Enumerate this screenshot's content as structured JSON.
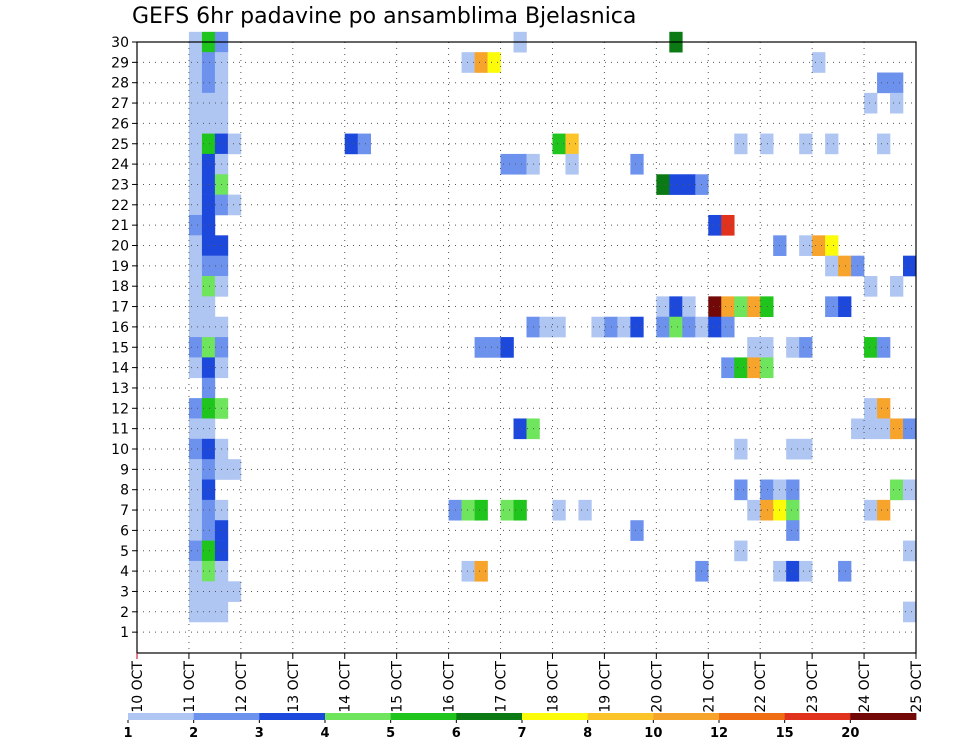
{
  "chart_data": {
    "type": "heatmap",
    "title": "GEFS 6hr padavine po ansamblima Bjelasnica",
    "xlabel": "",
    "ylabel": "",
    "x_ticks": [
      "10 OCT",
      "11 OCT",
      "12 OCT",
      "13 OCT",
      "14 OCT",
      "15 OCT",
      "16 OCT",
      "17 OCT",
      "18 OCT",
      "19 OCT",
      "20 OCT",
      "21 OCT",
      "22 OCT",
      "23 OCT",
      "24 OCT",
      "25 OCT"
    ],
    "y_ticks": [
      "1",
      "2",
      "3",
      "4",
      "5",
      "6",
      "7",
      "8",
      "9",
      "10",
      "11",
      "12",
      "13",
      "14",
      "15",
      "16",
      "17",
      "18",
      "19",
      "20",
      "21",
      "22",
      "23",
      "24",
      "25",
      "26",
      "27",
      "28",
      "29",
      "30"
    ],
    "x_range_days": [
      0,
      15
    ],
    "step_hours": 6,
    "grid": true,
    "legend_bins": [
      "1",
      "2",
      "3",
      "4",
      "5",
      "6",
      "7",
      "8",
      "10",
      "12",
      "15",
      "20"
    ],
    "legend_colors": [
      "#b0c6f2",
      "#6d92ed",
      "#1c48dc",
      "#6fe45d",
      "#1fc41c",
      "#0b7a14",
      "#fbfb0a",
      "#fbc52a",
      "#f7a42d",
      "#f06e13",
      "#e0321c",
      "#730808"
    ],
    "cell_value_units": "6hr precipitation (legend class lower bound)",
    "cells": [
      {
        "member": 30,
        "day": 1.0,
        "value": 1
      },
      {
        "member": 30,
        "day": 1.25,
        "value": 5
      },
      {
        "member": 30,
        "day": 1.5,
        "value": 2
      },
      {
        "member": 30,
        "day": 7.25,
        "value": 1
      },
      {
        "member": 30,
        "day": 10.25,
        "value": 6
      },
      {
        "member": 29,
        "day": 1.0,
        "value": 1
      },
      {
        "member": 29,
        "day": 1.25,
        "value": 2
      },
      {
        "member": 29,
        "day": 1.5,
        "value": 1
      },
      {
        "member": 29,
        "day": 6.25,
        "value": 1
      },
      {
        "member": 29,
        "day": 6.5,
        "value": 10
      },
      {
        "member": 29,
        "day": 6.75,
        "value": 7
      },
      {
        "member": 29,
        "day": 13.0,
        "value": 1
      },
      {
        "member": 28,
        "day": 1.0,
        "value": 1
      },
      {
        "member": 28,
        "day": 1.25,
        "value": 2
      },
      {
        "member": 28,
        "day": 1.5,
        "value": 1
      },
      {
        "member": 28,
        "day": 14.25,
        "value": 2
      },
      {
        "member": 28,
        "day": 14.5,
        "value": 2
      },
      {
        "member": 27,
        "day": 1.0,
        "value": 1
      },
      {
        "member": 27,
        "day": 1.25,
        "value": 1
      },
      {
        "member": 27,
        "day": 1.5,
        "value": 1
      },
      {
        "member": 27,
        "day": 14.0,
        "value": 1
      },
      {
        "member": 27,
        "day": 14.5,
        "value": 1
      },
      {
        "member": 26,
        "day": 1.0,
        "value": 1
      },
      {
        "member": 26,
        "day": 1.25,
        "value": 1
      },
      {
        "member": 26,
        "day": 1.5,
        "value": 1
      },
      {
        "member": 25,
        "day": 1.0,
        "value": 1
      },
      {
        "member": 25,
        "day": 1.25,
        "value": 5
      },
      {
        "member": 25,
        "day": 1.5,
        "value": 3
      },
      {
        "member": 25,
        "day": 1.75,
        "value": 1
      },
      {
        "member": 25,
        "day": 4.0,
        "value": 3
      },
      {
        "member": 25,
        "day": 4.25,
        "value": 2
      },
      {
        "member": 25,
        "day": 8.0,
        "value": 5
      },
      {
        "member": 25,
        "day": 8.25,
        "value": 8
      },
      {
        "member": 25,
        "day": 11.5,
        "value": 1
      },
      {
        "member": 25,
        "day": 12.0,
        "value": 1
      },
      {
        "member": 25,
        "day": 12.75,
        "value": 1
      },
      {
        "member": 25,
        "day": 13.25,
        "value": 1
      },
      {
        "member": 25,
        "day": 14.25,
        "value": 1
      },
      {
        "member": 24,
        "day": 1.0,
        "value": 1
      },
      {
        "member": 24,
        "day": 1.25,
        "value": 3
      },
      {
        "member": 24,
        "day": 1.5,
        "value": 1
      },
      {
        "member": 24,
        "day": 7.0,
        "value": 2
      },
      {
        "member": 24,
        "day": 7.25,
        "value": 2
      },
      {
        "member": 24,
        "day": 7.5,
        "value": 1
      },
      {
        "member": 24,
        "day": 8.25,
        "value": 1
      },
      {
        "member": 24,
        "day": 9.5,
        "value": 2
      },
      {
        "member": 23,
        "day": 1.0,
        "value": 1
      },
      {
        "member": 23,
        "day": 1.25,
        "value": 3
      },
      {
        "member": 23,
        "day": 1.5,
        "value": 4
      },
      {
        "member": 23,
        "day": 10.0,
        "value": 6
      },
      {
        "member": 23,
        "day": 10.25,
        "value": 3
      },
      {
        "member": 23,
        "day": 10.5,
        "value": 3
      },
      {
        "member": 23,
        "day": 10.75,
        "value": 2
      },
      {
        "member": 22,
        "day": 1.0,
        "value": 1
      },
      {
        "member": 22,
        "day": 1.25,
        "value": 3
      },
      {
        "member": 22,
        "day": 1.5,
        "value": 2
      },
      {
        "member": 22,
        "day": 1.75,
        "value": 1
      },
      {
        "member": 21,
        "day": 1.0,
        "value": 2
      },
      {
        "member": 21,
        "day": 1.25,
        "value": 3
      },
      {
        "member": 21,
        "day": 11.0,
        "value": 3
      },
      {
        "member": 21,
        "day": 11.25,
        "value": 15
      },
      {
        "member": 20,
        "day": 1.0,
        "value": 1
      },
      {
        "member": 20,
        "day": 1.25,
        "value": 3
      },
      {
        "member": 20,
        "day": 1.5,
        "value": 3
      },
      {
        "member": 20,
        "day": 12.25,
        "value": 2
      },
      {
        "member": 20,
        "day": 12.75,
        "value": 1
      },
      {
        "member": 20,
        "day": 13.0,
        "value": 10
      },
      {
        "member": 20,
        "day": 13.25,
        "value": 7
      },
      {
        "member": 19,
        "day": 1.0,
        "value": 1
      },
      {
        "member": 19,
        "day": 1.25,
        "value": 2
      },
      {
        "member": 19,
        "day": 1.5,
        "value": 2
      },
      {
        "member": 19,
        "day": 13.25,
        "value": 1
      },
      {
        "member": 19,
        "day": 13.5,
        "value": 10
      },
      {
        "member": 19,
        "day": 13.75,
        "value": 2
      },
      {
        "member": 19,
        "day": 14.75,
        "value": 3
      },
      {
        "member": 18,
        "day": 1.0,
        "value": 1
      },
      {
        "member": 18,
        "day": 1.25,
        "value": 4
      },
      {
        "member": 18,
        "day": 1.5,
        "value": 1
      },
      {
        "member": 18,
        "day": 14.0,
        "value": 1
      },
      {
        "member": 18,
        "day": 14.5,
        "value": 1
      },
      {
        "member": 17,
        "day": 1.0,
        "value": 1
      },
      {
        "member": 17,
        "day": 1.25,
        "value": 1
      },
      {
        "member": 17,
        "day": 10.0,
        "value": 1
      },
      {
        "member": 17,
        "day": 10.25,
        "value": 3
      },
      {
        "member": 17,
        "day": 10.5,
        "value": 1
      },
      {
        "member": 17,
        "day": 11.0,
        "value": 20
      },
      {
        "member": 17,
        "day": 11.25,
        "value": 10
      },
      {
        "member": 17,
        "day": 11.5,
        "value": 4
      },
      {
        "member": 17,
        "day": 11.75,
        "value": 10
      },
      {
        "member": 17,
        "day": 12.0,
        "value": 5
      },
      {
        "member": 17,
        "day": 13.25,
        "value": 2
      },
      {
        "member": 17,
        "day": 13.5,
        "value": 3
      },
      {
        "member": 16,
        "day": 1.0,
        "value": 1
      },
      {
        "member": 16,
        "day": 1.25,
        "value": 1
      },
      {
        "member": 16,
        "day": 1.5,
        "value": 1
      },
      {
        "member": 16,
        "day": 7.5,
        "value": 2
      },
      {
        "member": 16,
        "day": 7.75,
        "value": 1
      },
      {
        "member": 16,
        "day": 8.0,
        "value": 1
      },
      {
        "member": 16,
        "day": 8.75,
        "value": 1
      },
      {
        "member": 16,
        "day": 9.0,
        "value": 2
      },
      {
        "member": 16,
        "day": 9.25,
        "value": 1
      },
      {
        "member": 16,
        "day": 9.5,
        "value": 3
      },
      {
        "member": 16,
        "day": 10.0,
        "value": 2
      },
      {
        "member": 16,
        "day": 10.25,
        "value": 4
      },
      {
        "member": 16,
        "day": 10.5,
        "value": 2
      },
      {
        "member": 16,
        "day": 10.75,
        "value": 1
      },
      {
        "member": 16,
        "day": 11.0,
        "value": 3
      },
      {
        "member": 16,
        "day": 11.25,
        "value": 2
      },
      {
        "member": 15,
        "day": 1.0,
        "value": 2
      },
      {
        "member": 15,
        "day": 1.25,
        "value": 4
      },
      {
        "member": 15,
        "day": 1.5,
        "value": 2
      },
      {
        "member": 15,
        "day": 6.5,
        "value": 2
      },
      {
        "member": 15,
        "day": 6.75,
        "value": 2
      },
      {
        "member": 15,
        "day": 7.0,
        "value": 3
      },
      {
        "member": 15,
        "day": 11.75,
        "value": 1
      },
      {
        "member": 15,
        "day": 12.0,
        "value": 1
      },
      {
        "member": 15,
        "day": 12.5,
        "value": 1
      },
      {
        "member": 15,
        "day": 12.75,
        "value": 2
      },
      {
        "member": 15,
        "day": 14.0,
        "value": 5
      },
      {
        "member": 15,
        "day": 14.25,
        "value": 2
      },
      {
        "member": 14,
        "day": 1.0,
        "value": 1
      },
      {
        "member": 14,
        "day": 1.25,
        "value": 3
      },
      {
        "member": 14,
        "day": 1.5,
        "value": 1
      },
      {
        "member": 14,
        "day": 11.25,
        "value": 2
      },
      {
        "member": 14,
        "day": 11.5,
        "value": 5
      },
      {
        "member": 14,
        "day": 11.75,
        "value": 10
      },
      {
        "member": 14,
        "day": 12.0,
        "value": 4
      },
      {
        "member": 13,
        "day": 1.25,
        "value": 2
      },
      {
        "member": 12,
        "day": 1.0,
        "value": 2
      },
      {
        "member": 12,
        "day": 1.25,
        "value": 5
      },
      {
        "member": 12,
        "day": 1.5,
        "value": 4
      },
      {
        "member": 12,
        "day": 14.0,
        "value": 1
      },
      {
        "member": 12,
        "day": 14.25,
        "value": 10
      },
      {
        "member": 11,
        "day": 1.0,
        "value": 1
      },
      {
        "member": 11,
        "day": 1.25,
        "value": 1
      },
      {
        "member": 11,
        "day": 7.25,
        "value": 3
      },
      {
        "member": 11,
        "day": 7.5,
        "value": 4
      },
      {
        "member": 11,
        "day": 13.75,
        "value": 1
      },
      {
        "member": 11,
        "day": 14.0,
        "value": 1
      },
      {
        "member": 11,
        "day": 14.25,
        "value": 1
      },
      {
        "member": 11,
        "day": 14.5,
        "value": 10
      },
      {
        "member": 11,
        "day": 14.75,
        "value": 2
      },
      {
        "member": 10,
        "day": 1.0,
        "value": 2
      },
      {
        "member": 10,
        "day": 1.25,
        "value": 3
      },
      {
        "member": 10,
        "day": 1.5,
        "value": 1
      },
      {
        "member": 10,
        "day": 11.5,
        "value": 1
      },
      {
        "member": 10,
        "day": 12.5,
        "value": 1
      },
      {
        "member": 10,
        "day": 12.75,
        "value": 1
      },
      {
        "member": 9,
        "day": 1.0,
        "value": 1
      },
      {
        "member": 9,
        "day": 1.25,
        "value": 2
      },
      {
        "member": 9,
        "day": 1.5,
        "value": 1
      },
      {
        "member": 9,
        "day": 1.75,
        "value": 1
      },
      {
        "member": 8,
        "day": 1.0,
        "value": 1
      },
      {
        "member": 8,
        "day": 1.25,
        "value": 3
      },
      {
        "member": 8,
        "day": 11.5,
        "value": 2
      },
      {
        "member": 8,
        "day": 12.0,
        "value": 2
      },
      {
        "member": 8,
        "day": 12.25,
        "value": 1
      },
      {
        "member": 8,
        "day": 12.5,
        "value": 2
      },
      {
        "member": 8,
        "day": 14.5,
        "value": 4
      },
      {
        "member": 8,
        "day": 14.75,
        "value": 1
      },
      {
        "member": 7,
        "day": 1.0,
        "value": 1
      },
      {
        "member": 7,
        "day": 1.25,
        "value": 2
      },
      {
        "member": 7,
        "day": 1.5,
        "value": 1
      },
      {
        "member": 7,
        "day": 6.0,
        "value": 2
      },
      {
        "member": 7,
        "day": 6.25,
        "value": 4
      },
      {
        "member": 7,
        "day": 6.5,
        "value": 5
      },
      {
        "member": 7,
        "day": 7.0,
        "value": 4
      },
      {
        "member": 7,
        "day": 7.25,
        "value": 5
      },
      {
        "member": 7,
        "day": 8.0,
        "value": 1
      },
      {
        "member": 7,
        "day": 8.5,
        "value": 1
      },
      {
        "member": 7,
        "day": 11.75,
        "value": 1
      },
      {
        "member": 7,
        "day": 12.0,
        "value": 10
      },
      {
        "member": 7,
        "day": 12.25,
        "value": 7
      },
      {
        "member": 7,
        "day": 12.5,
        "value": 4
      },
      {
        "member": 7,
        "day": 14.0,
        "value": 1
      },
      {
        "member": 7,
        "day": 14.25,
        "value": 10
      },
      {
        "member": 6,
        "day": 1.0,
        "value": 1
      },
      {
        "member": 6,
        "day": 1.25,
        "value": 2
      },
      {
        "member": 6,
        "day": 1.5,
        "value": 3
      },
      {
        "member": 6,
        "day": 9.5,
        "value": 2
      },
      {
        "member": 6,
        "day": 12.5,
        "value": 2
      },
      {
        "member": 5,
        "day": 1.0,
        "value": 2
      },
      {
        "member": 5,
        "day": 1.25,
        "value": 5
      },
      {
        "member": 5,
        "day": 1.5,
        "value": 3
      },
      {
        "member": 5,
        "day": 11.5,
        "value": 1
      },
      {
        "member": 5,
        "day": 14.75,
        "value": 1
      },
      {
        "member": 4,
        "day": 1.0,
        "value": 1
      },
      {
        "member": 4,
        "day": 1.25,
        "value": 4
      },
      {
        "member": 4,
        "day": 1.5,
        "value": 1
      },
      {
        "member": 4,
        "day": 6.25,
        "value": 1
      },
      {
        "member": 4,
        "day": 6.5,
        "value": 10
      },
      {
        "member": 4,
        "day": 10.75,
        "value": 2
      },
      {
        "member": 4,
        "day": 12.25,
        "value": 1
      },
      {
        "member": 4,
        "day": 12.5,
        "value": 3
      },
      {
        "member": 4,
        "day": 12.75,
        "value": 1
      },
      {
        "member": 4,
        "day": 13.5,
        "value": 2
      },
      {
        "member": 3,
        "day": 1.0,
        "value": 1
      },
      {
        "member": 3,
        "day": 1.25,
        "value": 1
      },
      {
        "member": 3,
        "day": 1.5,
        "value": 1
      },
      {
        "member": 3,
        "day": 1.75,
        "value": 1
      },
      {
        "member": 2,
        "day": 1.0,
        "value": 1
      },
      {
        "member": 2,
        "day": 1.25,
        "value": 1
      },
      {
        "member": 2,
        "day": 1.5,
        "value": 1
      },
      {
        "member": 2,
        "day": 14.75,
        "value": 1
      }
    ]
  }
}
